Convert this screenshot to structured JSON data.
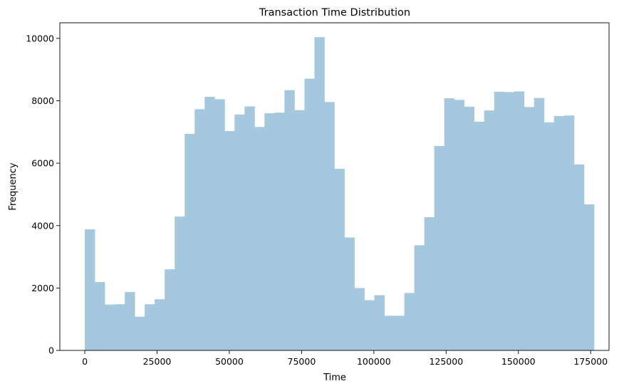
{
  "chart_data": {
    "type": "bar",
    "title": "Transaction Time Distribution",
    "xlabel": "Time",
    "ylabel": "Frequency",
    "xlim": [
      -8636,
      181353
    ],
    "ylim": [
      0,
      10500
    ],
    "grid": false,
    "bar_color": "#a6c8df",
    "x_ticks": [
      0,
      25000,
      50000,
      75000,
      100000,
      125000,
      150000,
      175000
    ],
    "x_tick_labels": [
      "0",
      "25000",
      "50000",
      "75000",
      "100000",
      "125000",
      "150000",
      "175000"
    ],
    "y_ticks": [
      0,
      2000,
      4000,
      6000,
      8000,
      10000
    ],
    "y_tick_labels": [
      "0",
      "2000",
      "4000",
      "6000",
      "8000",
      "10000"
    ],
    "bin_start": 0,
    "bin_width": 3454,
    "values": [
      3880,
      2190,
      1470,
      1480,
      1870,
      1080,
      1480,
      1640,
      2600,
      4290,
      6940,
      7730,
      8130,
      8050,
      7030,
      7560,
      7820,
      7160,
      7600,
      7620,
      8340,
      7700,
      8710,
      10040,
      7960,
      5820,
      3620,
      2000,
      1610,
      1770,
      1110,
      1110,
      1840,
      3370,
      4270,
      6550,
      8080,
      8030,
      7810,
      7330,
      7690,
      8290,
      8280,
      8300,
      7800,
      8090,
      7310,
      7510,
      7530,
      5960,
      4680
    ]
  }
}
